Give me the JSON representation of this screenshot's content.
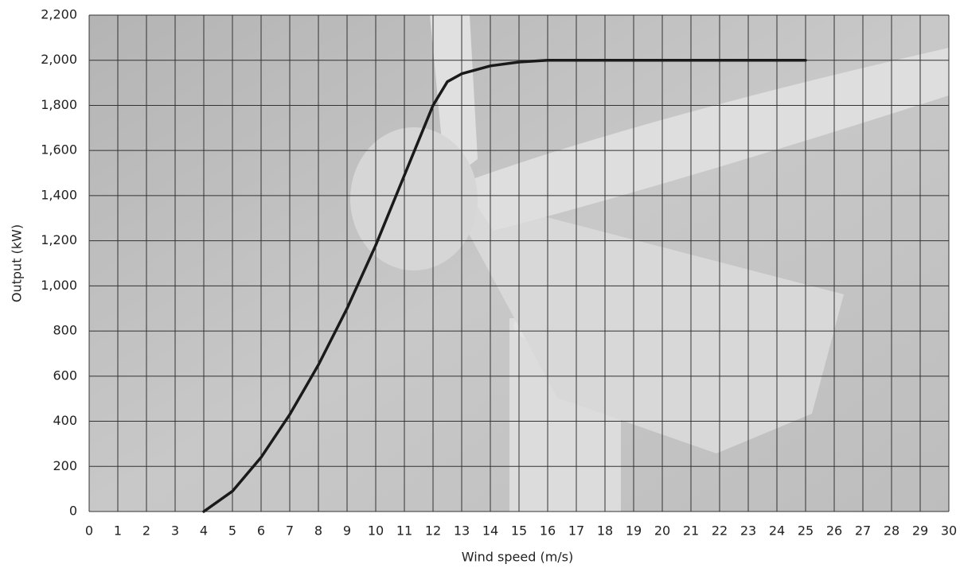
{
  "chart_data": {
    "type": "line",
    "x_label": "Wind speed (m/s)",
    "y_label": "Output (kW)",
    "x": [
      4,
      5,
      6,
      7,
      8,
      9,
      10,
      11,
      12,
      12.5,
      13,
      14,
      15,
      16,
      17,
      18,
      19,
      20,
      21,
      22,
      23,
      24,
      25
    ],
    "series": [
      {
        "color": "#1a1a1a",
        "values": [
          0,
          90,
          240,
          430,
          650,
          900,
          1180,
          1490,
          1800,
          1905,
          1940,
          1975,
          1992,
          2000,
          2000,
          2000,
          2000,
          2000,
          2000,
          2000,
          2000,
          2000,
          2000
        ]
      }
    ],
    "xlim": [
      0,
      30
    ],
    "xticks": [
      0,
      1,
      2,
      3,
      4,
      5,
      6,
      7,
      8,
      9,
      10,
      11,
      12,
      13,
      14,
      15,
      16,
      17,
      18,
      19,
      20,
      21,
      22,
      23,
      24,
      25,
      26,
      27,
      28,
      29,
      30
    ],
    "ylim": [
      0,
      2200
    ],
    "yticks": [
      0,
      200,
      400,
      600,
      800,
      {
        "value": 1000,
        "label": "1,000"
      },
      {
        "value": 1200,
        "label": "1,200"
      },
      {
        "value": 1400,
        "label": "1,400"
      },
      {
        "value": 1600,
        "label": "1,600"
      },
      {
        "value": 1800,
        "label": "1,800"
      },
      {
        "value": 2000,
        "label": "2,000"
      },
      {
        "value": 2200,
        "label": "2,200"
      }
    ],
    "grid": true
  }
}
